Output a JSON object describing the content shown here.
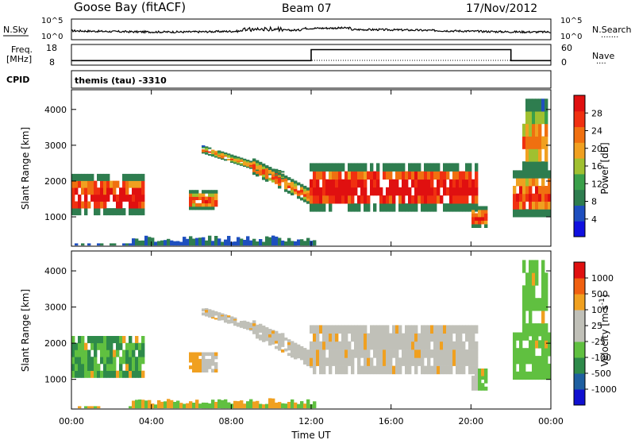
{
  "header": {
    "station": "Goose Bay (fitACF)",
    "beam": "Beam 07",
    "date": "17/Nov/2012"
  },
  "top_strip": {
    "left_label": "N.Sky",
    "right_label": "N.Search",
    "right_dots": "·······",
    "left_ticks": [
      "10^5",
      "10^0"
    ],
    "right_ticks": [
      "10^5",
      "10^0"
    ]
  },
  "freq_strip": {
    "left_label_1": "Freq.",
    "left_label_2": "[MHz]",
    "right_label": "Nave",
    "right_dots": "····",
    "left_ticks": [
      "18",
      "8"
    ],
    "right_ticks": [
      "60",
      "0"
    ]
  },
  "cpid": {
    "label": "CPID",
    "program": "themis (tau) -3310"
  },
  "colors": {
    "power_scale": [
      "#1010e0",
      "#1e4fbf",
      "#2e7d4f",
      "#3aa04a",
      "#a0c030",
      "#f0a020",
      "#f07010",
      "#f03010",
      "#e01010"
    ],
    "velocity_scale": [
      "#1010d0",
      "#1e5fa0",
      "#2e8a4a",
      "#60c040",
      "#c0c0b8",
      "#c0c0b8",
      "#f0a020",
      "#f06010",
      "#e01010"
    ]
  },
  "chart_data": [
    {
      "type": "heatmap",
      "name": "power",
      "ylabel": "Slant Range [km]",
      "ylim": [
        180,
        4550
      ],
      "yticks": [
        1000,
        2000,
        3000,
        4000
      ],
      "xlim": [
        0,
        24
      ],
      "xticks": [
        "00:00",
        "04:00",
        "08:00",
        "12:00",
        "16:00",
        "20:00",
        "00:00"
      ],
      "colorbar": {
        "label": "Power [dB]",
        "ticks": [
          "28",
          "24",
          "20",
          "16",
          "12",
          "8",
          "4"
        ],
        "range": [
          0,
          30
        ]
      }
    },
    {
      "type": "heatmap",
      "name": "velocity",
      "ylabel": "Slant Range [km]",
      "ylim": [
        180,
        4550
      ],
      "yticks": [
        1000,
        2000,
        3000,
        4000
      ],
      "xlim": [
        0,
        24
      ],
      "xticks": [
        "00:00",
        "04:00",
        "08:00",
        "12:00",
        "16:00",
        "20:00",
        "00:00"
      ],
      "xlabel": "Time UT",
      "colorbar": {
        "label": "Velocity [m s^-1]",
        "ticks": [
          "1000",
          "500",
          "100",
          "25",
          "-25",
          "-100",
          "-500",
          "-1000"
        ]
      }
    }
  ],
  "frequency_series": [
    {
      "t": 0,
      "f": 10.2
    },
    {
      "t": 12.0,
      "f": 10.2
    },
    {
      "t": 12.0,
      "f": 15.5
    },
    {
      "t": 22.0,
      "f": 15.5
    },
    {
      "t": 22.0,
      "f": 10.2
    },
    {
      "t": 24,
      "f": 10.2
    }
  ]
}
